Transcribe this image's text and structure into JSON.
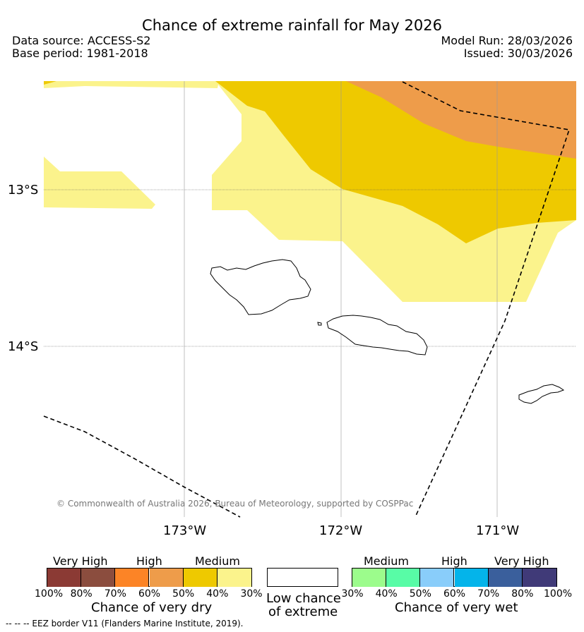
{
  "header": {
    "title": "Chance of extreme rainfall for May 2026",
    "data_source": "Data source: ACCESS-S2",
    "base_period": "Base period: 1981-2018",
    "model_run": "Model Run: 28/03/2026",
    "issued": "Issued: 30/03/2026"
  },
  "map": {
    "lat_labels": [
      "13°S",
      "14°S"
    ],
    "lon_labels": [
      "173°W",
      "172°W",
      "171°W"
    ],
    "copyright": "© Commonwealth of Australia 2026, Bureau of Meteorology, supported by COSPPac",
    "eez_color": "#000000"
  },
  "legend": {
    "dry": {
      "headers": [
        "Very High",
        "High",
        "Medium"
      ],
      "title": "Chance of very dry",
      "percentages": [
        "100%",
        "80%",
        "70%",
        "60%",
        "50%",
        "40%",
        "30%"
      ],
      "colors": [
        "#8b3a34",
        "#8b4d3e",
        "#fc8426",
        "#ee9c4a",
        "#eec900",
        "#fbf38c"
      ]
    },
    "low": {
      "title_line1": "Low chance",
      "title_line2": "of extreme",
      "color": "#ffffff"
    },
    "wet": {
      "headers": [
        "Medium",
        "High",
        "Very High"
      ],
      "title": "Chance of very wet",
      "percentages": [
        "30%",
        "40%",
        "50%",
        "60%",
        "70%",
        "80%",
        "100%"
      ],
      "colors": [
        "#9cfc8c",
        "#58fca6",
        "#89cdfa",
        "#04b4ea",
        "#3a5f9c",
        "#403a78"
      ]
    }
  },
  "footer": {
    "eez_note": "--  --  -- EEZ border V11 (Flanders Marine Institute, 2019)."
  }
}
